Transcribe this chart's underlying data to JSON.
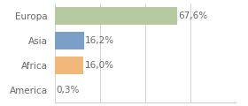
{
  "categories": [
    "Europa",
    "Asia",
    "Africa",
    "America"
  ],
  "values": [
    67.6,
    16.2,
    16.0,
    0.3
  ],
  "labels": [
    "67,6%",
    "16,2%",
    "16,0%",
    "0,3%"
  ],
  "bar_colors": [
    "#b5c9a1",
    "#7b9fc7",
    "#f0b87a",
    "#dddddd"
  ],
  "background_color": "#ffffff",
  "xlim": [
    0,
    100
  ],
  "bar_height": 0.72,
  "label_fontsize": 7.5,
  "ytick_fontsize": 7.5,
  "grid_color": "#cccccc",
  "text_color": "#666666"
}
